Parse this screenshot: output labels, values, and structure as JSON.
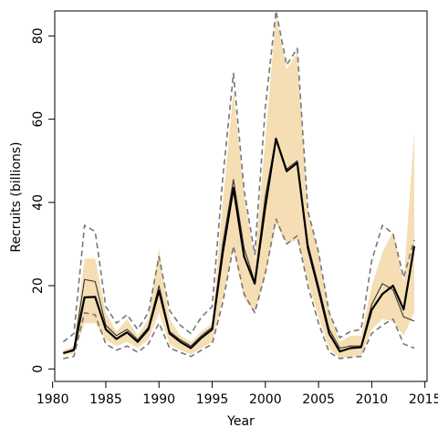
{
  "chart_data": {
    "type": "line",
    "xlabel": "Year",
    "ylabel": "Recruits (billions)",
    "xlim": [
      1980.2,
      2015.2
    ],
    "ylim": [
      -3,
      86
    ],
    "xticks": [
      1980,
      1985,
      1990,
      1995,
      2000,
      2005,
      2010,
      2015
    ],
    "yticks": [
      0,
      20,
      40,
      60,
      80
    ],
    "grid": false,
    "legend": "none",
    "x": [
      1981,
      1982,
      1983,
      1984,
      1985,
      1986,
      1987,
      1988,
      1989,
      1990,
      1991,
      1992,
      1993,
      1994,
      1995,
      1996,
      1997,
      1998,
      1999,
      2000,
      2001,
      2002,
      2003,
      2004,
      2005,
      2006,
      2007,
      2008,
      2009,
      2010,
      2011,
      2012,
      2013,
      2014
    ],
    "series": [
      {
        "role": "band",
        "color": "#f5deb3",
        "lower": [
          3.2,
          3.8,
          11,
          11,
          7,
          5.5,
          6.5,
          5,
          7,
          13.5,
          6,
          4.5,
          3.5,
          5,
          6.5,
          17,
          28.5,
          17,
          13.5,
          22.5,
          35,
          30,
          31,
          21,
          12.5,
          5,
          2.5,
          3,
          3,
          9.5,
          12,
          11.5,
          8,
          13.5
        ],
        "upper": [
          4.5,
          5.5,
          26.5,
          26.5,
          13.5,
          9,
          12,
          8,
          12,
          29,
          12,
          8,
          6.5,
          9,
          11,
          40,
          67,
          42,
          26,
          55,
          85,
          72,
          76,
          38,
          28,
          14,
          6.5,
          8,
          8,
          20,
          28,
          33,
          21,
          57
        ]
      },
      {
        "role": "upper-dashed",
        "color": "#777777",
        "values": [
          6.5,
          8.5,
          34.5,
          33,
          15,
          11,
          13,
          9.5,
          13.5,
          27,
          14,
          10.5,
          8.5,
          12.5,
          15,
          46,
          71,
          43,
          27.5,
          63,
          86,
          73,
          77,
          38,
          28,
          13.5,
          7.5,
          9,
          9.5,
          26,
          34.5,
          32.5,
          22,
          31
        ]
      },
      {
        "role": "lower-dashed",
        "color": "#777777",
        "values": [
          2.5,
          3,
          13.5,
          13,
          6,
          4.5,
          5.5,
          4,
          6,
          11,
          5,
          4,
          3,
          4.5,
          6,
          16,
          29.5,
          18,
          13.5,
          23,
          36,
          30,
          32,
          20,
          11,
          4,
          2.5,
          2.8,
          3,
          8.5,
          10.5,
          12,
          6,
          5
        ]
      },
      {
        "role": "inner-line",
        "color": "#333333",
        "values": [
          3.8,
          4.8,
          21.5,
          21,
          10.5,
          8,
          9.5,
          7,
          10,
          20,
          9,
          7,
          5.5,
          8,
          10,
          30,
          45.5,
          29,
          21,
          41.5,
          55.5,
          48,
          50,
          30,
          20,
          9.5,
          5,
          5.5,
          5.5,
          15.5,
          20.5,
          19,
          12.5,
          11.5
        ]
      },
      {
        "role": "estimate",
        "color": "#000000",
        "values": [
          3.8,
          4.5,
          17.2,
          17.3,
          9.5,
          7.2,
          8.8,
          6.5,
          9.5,
          18.8,
          8.5,
          6.5,
          5,
          7.5,
          9.5,
          28,
          43.5,
          27,
          20.5,
          39,
          55.3,
          47.5,
          49.5,
          29,
          19,
          8.5,
          4.2,
          5,
          5.2,
          14.2,
          18,
          20,
          14.3,
          29.5
        ]
      }
    ]
  }
}
